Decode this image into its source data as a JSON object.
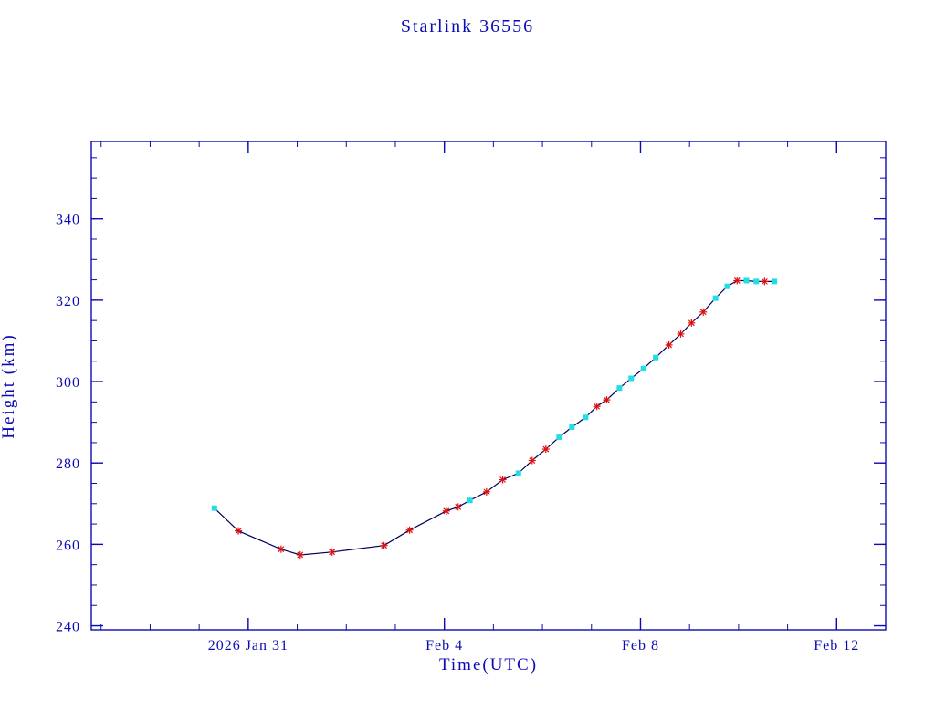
{
  "chart_data": {
    "type": "line",
    "title": "Starlink 36556",
    "xlabel": "Time(UTC)",
    "ylabel": "Height (km)",
    "axis_color": "#0b0bb5",
    "line_color": "#000060",
    "marker_colors": {
      "square": "#22dde6",
      "star": "#dd1111"
    },
    "x_unit": "days since 2026 Jan 31 00:00 UTC",
    "xlim": [
      -3.2,
      13.0
    ],
    "ylim": [
      239,
      359
    ],
    "x_major_ticks": [
      0,
      4,
      8,
      12
    ],
    "x_tick_labels": [
      "2026 Jan 31",
      "Feb 4",
      "Feb 8",
      "Feb 12"
    ],
    "x_minor_step": 1,
    "y_major_ticks": [
      240,
      260,
      280,
      300,
      320,
      340
    ],
    "y_minor_step": 5,
    "grid": "off",
    "legend": "none",
    "points": [
      {
        "day": -0.69,
        "height": 268.9,
        "marker": "square"
      },
      {
        "day": -0.2,
        "height": 263.3,
        "marker": "star"
      },
      {
        "day": 0.67,
        "height": 258.8,
        "marker": "star"
      },
      {
        "day": 1.06,
        "height": 257.4,
        "marker": "star"
      },
      {
        "day": 1.71,
        "height": 258.1,
        "marker": "star"
      },
      {
        "day": 2.77,
        "height": 259.7,
        "marker": "star"
      },
      {
        "day": 3.29,
        "height": 263.5,
        "marker": "star"
      },
      {
        "day": 4.04,
        "height": 268.2,
        "marker": "star"
      },
      {
        "day": 4.28,
        "height": 269.2,
        "marker": "star"
      },
      {
        "day": 4.52,
        "height": 270.8,
        "marker": "square"
      },
      {
        "day": 4.86,
        "height": 272.9,
        "marker": "star"
      },
      {
        "day": 5.19,
        "height": 275.9,
        "marker": "star"
      },
      {
        "day": 5.51,
        "height": 277.5,
        "marker": "square"
      },
      {
        "day": 5.79,
        "height": 280.6,
        "marker": "star"
      },
      {
        "day": 6.07,
        "height": 283.4,
        "marker": "star"
      },
      {
        "day": 6.34,
        "height": 286.3,
        "marker": "square"
      },
      {
        "day": 6.6,
        "height": 288.8,
        "marker": "square"
      },
      {
        "day": 6.88,
        "height": 291.2,
        "marker": "square"
      },
      {
        "day": 7.11,
        "height": 293.9,
        "marker": "star"
      },
      {
        "day": 7.31,
        "height": 295.5,
        "marker": "star"
      },
      {
        "day": 7.57,
        "height": 298.4,
        "marker": "square"
      },
      {
        "day": 7.81,
        "height": 300.8,
        "marker": "square"
      },
      {
        "day": 8.06,
        "height": 303.2,
        "marker": "square"
      },
      {
        "day": 8.31,
        "height": 305.9,
        "marker": "square"
      },
      {
        "day": 8.58,
        "height": 309.0,
        "marker": "star"
      },
      {
        "day": 8.82,
        "height": 311.7,
        "marker": "star"
      },
      {
        "day": 9.04,
        "height": 314.4,
        "marker": "star"
      },
      {
        "day": 9.28,
        "height": 317.1,
        "marker": "star"
      },
      {
        "day": 9.53,
        "height": 320.5,
        "marker": "square"
      },
      {
        "day": 9.77,
        "height": 323.4,
        "marker": "square"
      },
      {
        "day": 9.97,
        "height": 324.8,
        "marker": "star"
      },
      {
        "day": 10.16,
        "height": 324.8,
        "marker": "square"
      },
      {
        "day": 10.36,
        "height": 324.6,
        "marker": "square"
      },
      {
        "day": 10.53,
        "height": 324.6,
        "marker": "star"
      },
      {
        "day": 10.73,
        "height": 324.6,
        "marker": "square"
      }
    ]
  }
}
